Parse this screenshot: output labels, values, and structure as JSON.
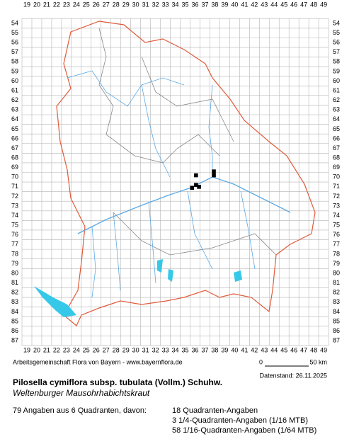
{
  "grid": {
    "columns": [
      19,
      20,
      21,
      22,
      23,
      24,
      25,
      26,
      27,
      28,
      29,
      30,
      31,
      32,
      33,
      34,
      35,
      36,
      37,
      38,
      39,
      40,
      41,
      42,
      43,
      44,
      45,
      46,
      47,
      48,
      49
    ],
    "rows": [
      54,
      55,
      56,
      57,
      58,
      59,
      60,
      61,
      62,
      63,
      64,
      65,
      66,
      67,
      68,
      69,
      70,
      71,
      72,
      73,
      74,
      75,
      76,
      77,
      78,
      79,
      80,
      81,
      82,
      83,
      84,
      85,
      86,
      87
    ]
  },
  "occurrences": [
    {
      "col": 36.1,
      "row": 69.8
    },
    {
      "col": 36.1,
      "row": 70.8
    },
    {
      "col": 35.7,
      "row": 71.1
    },
    {
      "col": 36.4,
      "row": 71.0
    },
    {
      "col": 37.9,
      "row": 69.4
    },
    {
      "col": 37.9,
      "row": 69.8
    }
  ],
  "footer": {
    "source": "Arbeitsgemeinschaft Flora von Bayern - www.bayernflora.de",
    "scale_start": "0",
    "scale_end": "50 km",
    "date": "Datenstand: 26.11.2025"
  },
  "species": {
    "name": "Pilosella cymiflora subsp. tubulata (Vollm.) Schuhw.",
    "common_name": "Weltenburger Mausohrhabichtskraut"
  },
  "summary": {
    "total": "79 Angaben aus 6 Quadranten, davon:",
    "details": [
      "18 Quadranten-Angaben",
      "3 1/4-Quadranten-Angaben (1/16 MTB)",
      "58 1/16-Quadranten-Angaben (1/64 MTB)"
    ]
  }
}
